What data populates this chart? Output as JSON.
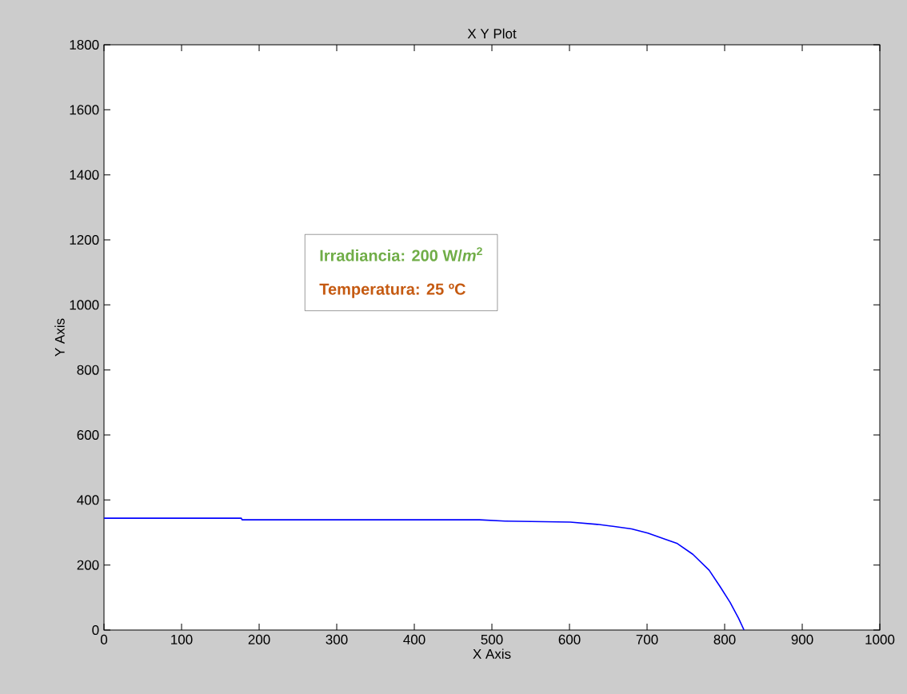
{
  "chart_data": {
    "type": "line",
    "title": "X Y Plot",
    "xlabel": "X Axis",
    "ylabel": "Y Axis",
    "annotations": [
      "Irradiancia: 200 W/*m*$^{2}$",
      "Temperatura: 25 ºC"
    ],
    "series": [
      {
        "color": "#0000ff",
        "x": [
          0,
          177,
          178,
          484,
          517,
          518,
          601,
          636,
          656,
          680,
          701,
          725,
          739,
          759,
          780,
          794,
          807,
          818,
          825
        ],
        "values": [
          344,
          344,
          339,
          339,
          335,
          335,
          332,
          325,
          319,
          311,
          298,
          278,
          266,
          233,
          184,
          134,
          85,
          36,
          0
        ]
      }
    ],
    "xlim": [
      0,
      1000
    ],
    "ylim": [
      0,
      1800
    ],
    "xticks": [
      0,
      100,
      200,
      300,
      400,
      500,
      600,
      700,
      800,
      900,
      1000
    ],
    "yticks": [
      0,
      200,
      400,
      600,
      800,
      1000,
      1200,
      1400,
      1600,
      1800
    ],
    "marker": "none",
    "line_style": "solid"
  }
}
